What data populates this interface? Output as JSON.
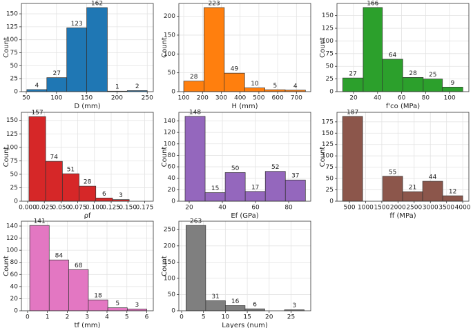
{
  "chart_data": [
    {
      "type": "histogram",
      "xlabel": "D (mm)",
      "ylabel": "Count",
      "color": "#1f77b4",
      "grid": true,
      "bins": [
        51,
        84,
        117,
        150,
        184,
        217,
        250
      ],
      "values": [
        4,
        27,
        123,
        162,
        1,
        2
      ],
      "xlim": [
        42,
        260
      ],
      "xticks": [
        50,
        100,
        150,
        200,
        250
      ],
      "ylim": [
        0,
        170
      ],
      "yticks": [
        0,
        25,
        50,
        75,
        100,
        125,
        150
      ]
    },
    {
      "type": "histogram",
      "xlabel": "H (mm)",
      "ylabel": "Count",
      "color": "#ff7f0e",
      "grid": true,
      "bins": [
        100,
        208,
        316,
        424,
        532,
        640,
        748
      ],
      "values": [
        28,
        223,
        49,
        10,
        5,
        4
      ],
      "xlim": [
        74,
        776
      ],
      "xticks": [
        100,
        200,
        300,
        400,
        500,
        600,
        700
      ],
      "ylim": [
        0,
        234
      ],
      "yticks": [
        0,
        50,
        100,
        150,
        200
      ]
    },
    {
      "type": "histogram",
      "xlabel": "f'co (MPa)",
      "ylabel": "Count",
      "color": "#2ca02c",
      "grid": true,
      "bins": [
        11,
        28,
        44,
        61,
        78,
        94,
        111
      ],
      "values": [
        27,
        166,
        64,
        28,
        25,
        9
      ],
      "xlim": [
        6.2,
        116
      ],
      "xticks": [
        20,
        40,
        60,
        80,
        100
      ],
      "ylim": [
        0,
        174
      ],
      "yticks": [
        0,
        25,
        50,
        75,
        100,
        125,
        150
      ]
    },
    {
      "type": "histogram",
      "xlabel": "ρf",
      "ylabel": "Count",
      "color": "#d62728",
      "grid": true,
      "bins": [
        0.002,
        0.027,
        0.052,
        0.077,
        0.102,
        0.127,
        0.152
      ],
      "values": [
        157,
        74,
        51,
        28,
        6,
        3
      ],
      "xlim": [
        -0.0093,
        0.188
      ],
      "xticks": [
        {
          "value": 0,
          "label": "0.000"
        },
        {
          "value": 0.025,
          "label": "0.025"
        },
        {
          "value": 0.05,
          "label": "0.050"
        },
        {
          "value": 0.075,
          "label": "0.075"
        },
        {
          "value": 0.1,
          "label": "0.100"
        },
        {
          "value": 0.125,
          "label": "0.125"
        },
        {
          "value": 0.15,
          "label": "0.150"
        },
        {
          "value": 0.175,
          "label": "0.175"
        }
      ],
      "ylim": [
        0,
        165
      ],
      "yticks": [
        0,
        25,
        50,
        75,
        100,
        125,
        150
      ]
    },
    {
      "type": "histogram",
      "xlabel": "Ef (GPa)",
      "ylabel": "Count",
      "color": "#9467bd",
      "grid": true,
      "bins": [
        17.5,
        29.6,
        41.7,
        53.8,
        65.9,
        78,
        90.1
      ],
      "values": [
        148,
        15,
        50,
        17,
        52,
        37
      ],
      "xlim": [
        13.75,
        93.3
      ],
      "xticks": [
        20,
        40,
        60,
        80
      ],
      "ylim": [
        0,
        155
      ],
      "yticks": [
        0,
        20,
        40,
        60,
        80,
        100,
        120,
        140
      ]
    },
    {
      "type": "histogram",
      "xlabel": "ff (MPa)",
      "ylabel": "Count",
      "color": "#8c564b",
      "grid": true,
      "bins": [
        290,
        908,
        1527,
        2145,
        2763,
        3382,
        4000
      ],
      "values": [
        187,
        0,
        55,
        21,
        44,
        12
      ],
      "value_labels": [
        187,
        null,
        55,
        21,
        44,
        12
      ],
      "xlim": [
        116,
        4189
      ],
      "xticks": [
        500,
        1000,
        1500,
        2000,
        2500,
        3000,
        3500,
        4000
      ],
      "ylim": [
        0,
        196
      ],
      "yticks": [
        0,
        25,
        50,
        75,
        100,
        125,
        150,
        175
      ]
    },
    {
      "type": "histogram",
      "xlabel": "tf (mm)",
      "ylabel": "Count",
      "color": "#e377c2",
      "grid": true,
      "bins": [
        0.11,
        1.09,
        2.07,
        3.06,
        4.04,
        5.02,
        6.0
      ],
      "values": [
        141,
        84,
        68,
        18,
        5,
        3
      ],
      "xlim": [
        -0.31,
        6.33
      ],
      "xticks": [
        0,
        1,
        2,
        3,
        4,
        5,
        6
      ],
      "ylim": [
        0,
        148
      ],
      "yticks": [
        0,
        20,
        40,
        60,
        80,
        100,
        120,
        140
      ]
    },
    {
      "type": "histogram",
      "xlabel": "Layers (num)",
      "ylabel": "Count",
      "color": "#7f7f7f",
      "grid": true,
      "bins": [
        1,
        5.5,
        10,
        14.5,
        19,
        23.5,
        28
      ],
      "values": [
        263,
        31,
        16,
        6,
        0,
        3
      ],
      "value_labels": [
        263,
        31,
        16,
        6,
        null,
        3
      ],
      "xlim": [
        -0.63,
        29.5
      ],
      "xticks": [
        0,
        5,
        10,
        15,
        20,
        25
      ],
      "ylim": [
        0,
        276
      ],
      "yticks": [
        0,
        50,
        100,
        150,
        200,
        250
      ]
    }
  ]
}
